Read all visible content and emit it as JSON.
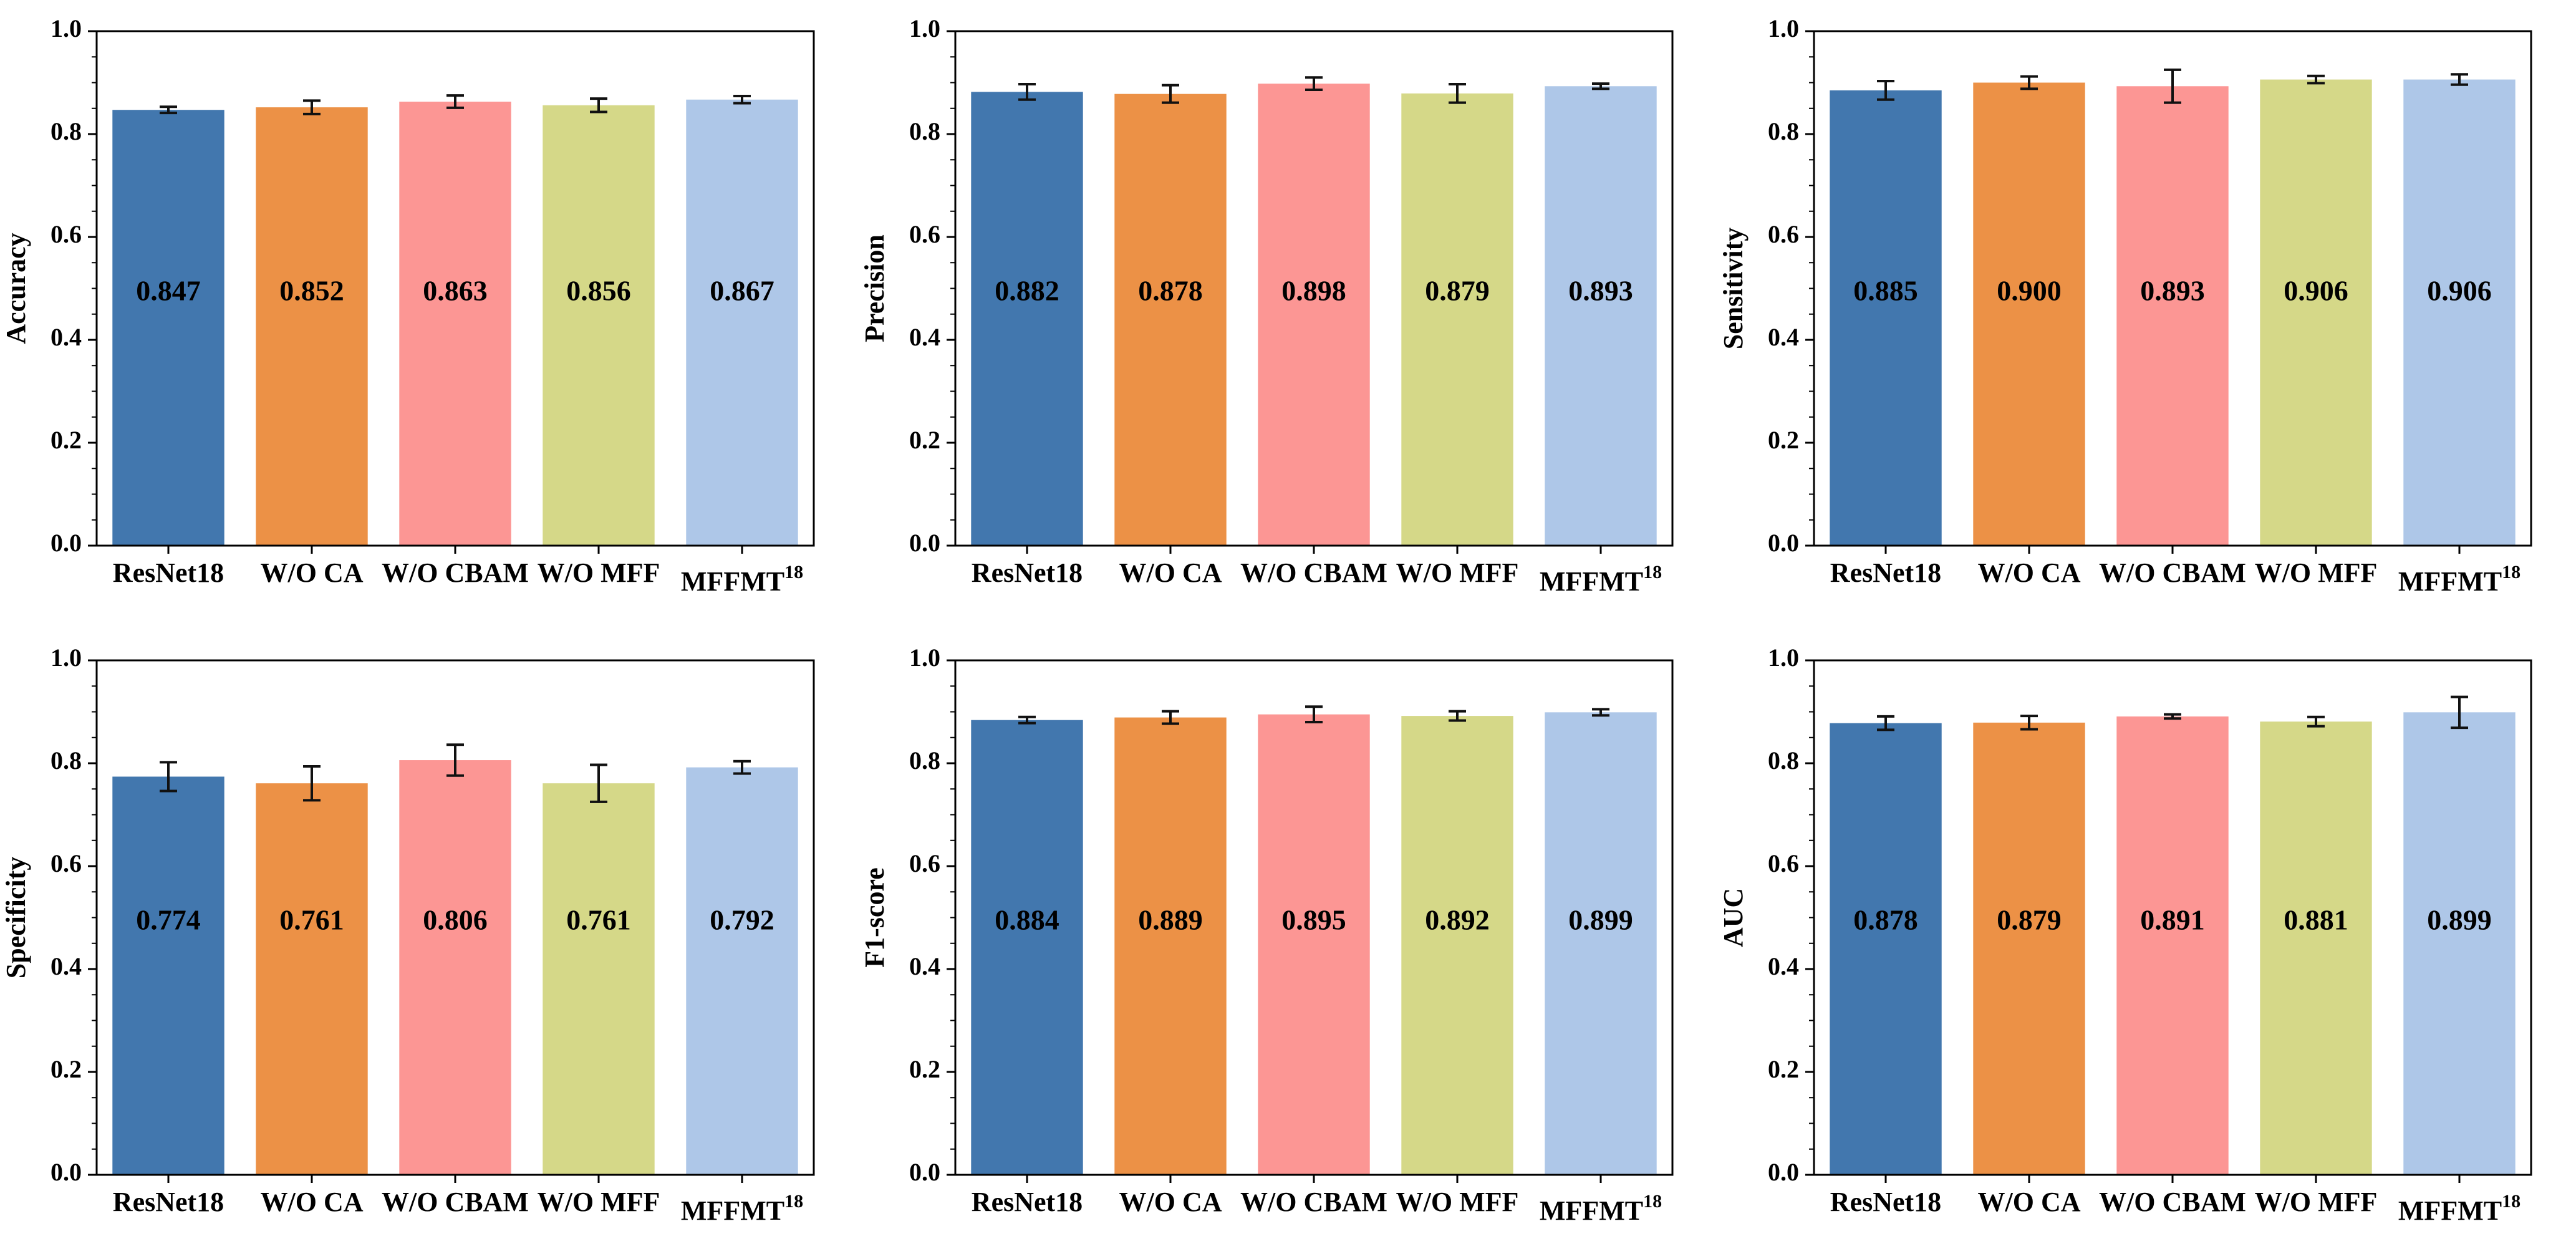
{
  "figure": {
    "description": "Ablation study bar charts comparing five models across six evaluation metrics",
    "rows": 2,
    "cols": 3,
    "background": "#ffffff",
    "bar_colors": [
      "#4277AE",
      "#EC9146",
      "#FC9694",
      "#D5D888",
      "#AEC7E8"
    ],
    "error_bar_color": "#111111",
    "axis_color": "#000000",
    "ytick_labels": [
      "0.0",
      "0.2",
      "0.4",
      "0.6",
      "0.8",
      "1.0"
    ]
  },
  "chart_data": [
    {
      "type": "bar",
      "metric": "Accuracy",
      "ylabel": "Accuracy",
      "categories": [
        {
          "label": "ResNet18"
        },
        {
          "label": "W/O CA"
        },
        {
          "label": "W/O CBAM"
        },
        {
          "label": "W/O MFF"
        },
        {
          "label": "MFFMT",
          "superscript": "18"
        }
      ],
      "values": [
        0.847,
        0.852,
        0.863,
        0.856,
        0.867
      ],
      "errors": [
        0.006,
        0.013,
        0.012,
        0.013,
        0.007
      ],
      "ylim": [
        0.0,
        1.0
      ],
      "yticks": [
        0.0,
        0.2,
        0.4,
        0.6,
        0.8,
        1.0
      ],
      "minor_tick_step": 0.05,
      "value_label_y": 0.49,
      "grid": false,
      "legend": "none"
    },
    {
      "type": "bar",
      "metric": "Precision",
      "ylabel": "Precision",
      "categories": [
        {
          "label": "ResNet18"
        },
        {
          "label": "W/O CA"
        },
        {
          "label": "W/O CBAM"
        },
        {
          "label": "W/O MFF"
        },
        {
          "label": "MFFMT",
          "superscript": "18"
        }
      ],
      "values": [
        0.882,
        0.878,
        0.898,
        0.879,
        0.893
      ],
      "errors": [
        0.015,
        0.017,
        0.012,
        0.018,
        0.005
      ],
      "ylim": [
        0.0,
        1.0
      ],
      "yticks": [
        0.0,
        0.2,
        0.4,
        0.6,
        0.8,
        1.0
      ],
      "minor_tick_step": 0.05,
      "value_label_y": 0.49,
      "grid": false,
      "legend": "none"
    },
    {
      "type": "bar",
      "metric": "Sensitivity",
      "ylabel": "Sensitivity",
      "categories": [
        {
          "label": "ResNet18"
        },
        {
          "label": "W/O CA"
        },
        {
          "label": "W/O CBAM"
        },
        {
          "label": "W/O MFF"
        },
        {
          "label": "MFFMT",
          "superscript": "18"
        }
      ],
      "values": [
        0.885,
        0.9,
        0.893,
        0.906,
        0.906
      ],
      "errors": [
        0.018,
        0.012,
        0.032,
        0.007,
        0.01
      ],
      "ylim": [
        0.0,
        1.0
      ],
      "yticks": [
        0.0,
        0.2,
        0.4,
        0.6,
        0.8,
        1.0
      ],
      "minor_tick_step": 0.05,
      "value_label_y": 0.49,
      "grid": false,
      "legend": "none"
    },
    {
      "type": "bar",
      "metric": "Specificity",
      "ylabel": "Specificity",
      "categories": [
        {
          "label": "ResNet18"
        },
        {
          "label": "W/O CA"
        },
        {
          "label": "W/O CBAM"
        },
        {
          "label": "W/O MFF"
        },
        {
          "label": "MFFMT",
          "superscript": "18"
        }
      ],
      "values": [
        0.774,
        0.761,
        0.806,
        0.761,
        0.792
      ],
      "errors": [
        0.028,
        0.033,
        0.03,
        0.036,
        0.012
      ],
      "ylim": [
        0.0,
        1.0
      ],
      "yticks": [
        0.0,
        0.2,
        0.4,
        0.6,
        0.8,
        1.0
      ],
      "minor_tick_step": 0.05,
      "value_label_y": 0.49,
      "grid": false,
      "legend": "none"
    },
    {
      "type": "bar",
      "metric": "F1-score",
      "ylabel": "F1-score",
      "categories": [
        {
          "label": "ResNet18"
        },
        {
          "label": "W/O CA"
        },
        {
          "label": "W/O CBAM"
        },
        {
          "label": "W/O MFF"
        },
        {
          "label": "MFFMT",
          "superscript": "18"
        }
      ],
      "values": [
        0.884,
        0.889,
        0.895,
        0.892,
        0.899
      ],
      "errors": [
        0.006,
        0.012,
        0.015,
        0.009,
        0.006
      ],
      "ylim": [
        0.0,
        1.0
      ],
      "yticks": [
        0.0,
        0.2,
        0.4,
        0.6,
        0.8,
        1.0
      ],
      "minor_tick_step": 0.05,
      "value_label_y": 0.49,
      "grid": false,
      "legend": "none"
    },
    {
      "type": "bar",
      "metric": "AUC",
      "ylabel": "AUC",
      "categories": [
        {
          "label": "ResNet18"
        },
        {
          "label": "W/O CA"
        },
        {
          "label": "W/O CBAM"
        },
        {
          "label": "W/O MFF"
        },
        {
          "label": "MFFMT",
          "superscript": "18"
        }
      ],
      "values": [
        0.878,
        0.879,
        0.891,
        0.881,
        0.899
      ],
      "errors": [
        0.013,
        0.013,
        0.004,
        0.009,
        0.03
      ],
      "ylim": [
        0.0,
        1.0
      ],
      "yticks": [
        0.0,
        0.2,
        0.4,
        0.6,
        0.8,
        1.0
      ],
      "minor_tick_step": 0.05,
      "value_label_y": 0.49,
      "grid": false,
      "legend": "none"
    }
  ]
}
